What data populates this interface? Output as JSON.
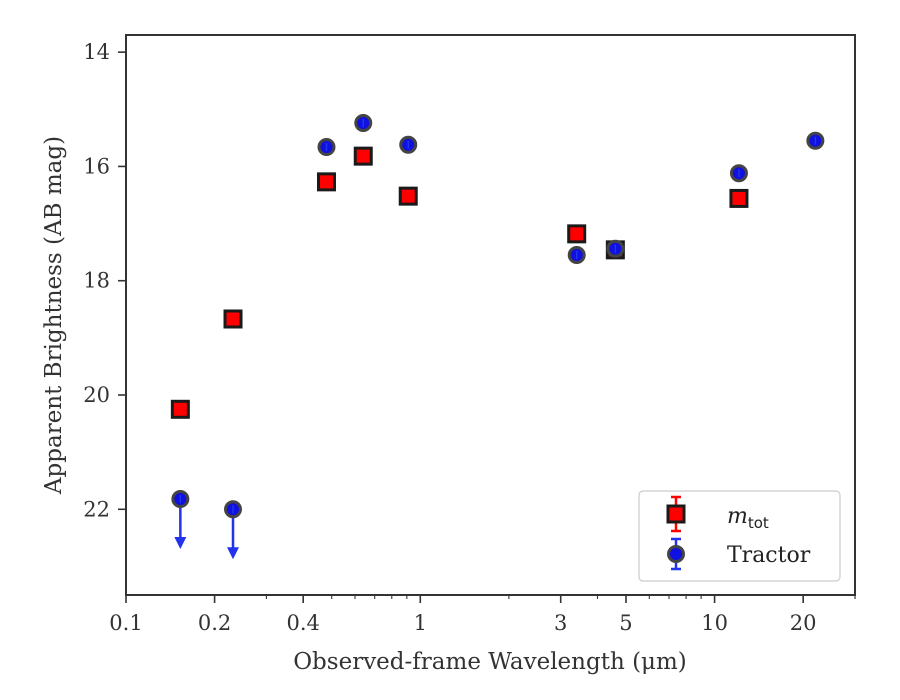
{
  "chart_data": {
    "type": "scatter",
    "xlabel": "Observed-frame Wavelength (μm)",
    "ylabel": "Apparent Brightness (AB mag)",
    "xscale": "log",
    "xlim": [
      0.1,
      30
    ],
    "ylim": [
      23.5,
      13.7
    ],
    "y_inverted": true,
    "x_ticks": [
      {
        "value": 0.1,
        "label": "0.1"
      },
      {
        "value": 0.2,
        "label": "0.2"
      },
      {
        "value": 0.4,
        "label": "0.4"
      },
      {
        "value": 1,
        "label": "1"
      },
      {
        "value": 3,
        "label": "3"
      },
      {
        "value": 5,
        "label": "5"
      },
      {
        "value": 10,
        "label": "10"
      },
      {
        "value": 20,
        "label": "20"
      }
    ],
    "y_ticks": [
      {
        "value": 14,
        "label": "14"
      },
      {
        "value": 16,
        "label": "16"
      },
      {
        "value": 18,
        "label": "18"
      },
      {
        "value": 20,
        "label": "20"
      },
      {
        "value": 22,
        "label": "22"
      }
    ],
    "legend_position": "lower-right",
    "grid": false,
    "series": [
      {
        "name": "m",
        "name_subscript": "tot",
        "marker": "square",
        "color": "#ff0000",
        "edge_color": "#1a1a1a",
        "error_color": "#ff0000",
        "points": [
          {
            "x": 0.153,
            "y": 20.25
          },
          {
            "x": 0.231,
            "y": 18.67
          },
          {
            "x": 0.48,
            "y": 16.27
          },
          {
            "x": 0.64,
            "y": 15.82
          },
          {
            "x": 0.91,
            "y": 16.52
          },
          {
            "x": 3.4,
            "y": 17.18
          },
          {
            "x": 4.6,
            "y": 17.46
          },
          {
            "x": 12.1,
            "y": 16.56
          }
        ]
      },
      {
        "name": "Tractor",
        "marker": "circle",
        "color": "#1010e0",
        "edge_color": "#444444",
        "error_color": "#2233ee",
        "points": [
          {
            "x": 0.153,
            "y": 21.82,
            "upper_limit": true
          },
          {
            "x": 0.231,
            "y": 22.0,
            "upper_limit": true
          },
          {
            "x": 0.48,
            "y": 15.66
          },
          {
            "x": 0.64,
            "y": 15.24
          },
          {
            "x": 0.91,
            "y": 15.62
          },
          {
            "x": 3.4,
            "y": 17.55
          },
          {
            "x": 4.6,
            "y": 17.44
          },
          {
            "x": 12.1,
            "y": 16.12
          },
          {
            "x": 22.0,
            "y": 15.55
          }
        ]
      }
    ]
  }
}
